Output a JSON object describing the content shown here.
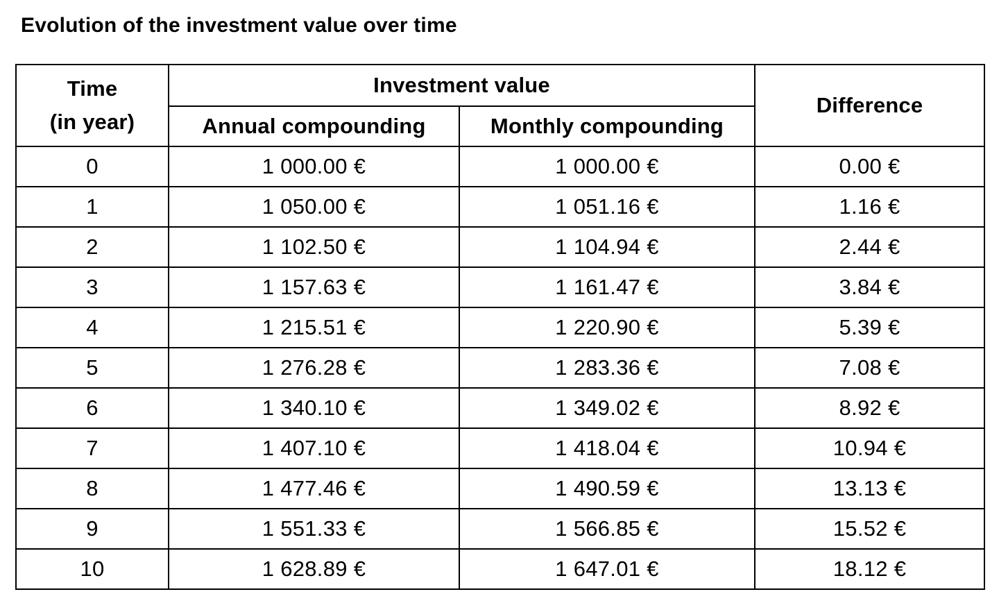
{
  "page": {
    "title": "Evolution of the investment value over time"
  },
  "table": {
    "headers": {
      "time": "Time\n(in year)",
      "investment_value": "Investment value",
      "annual": "Annual compounding",
      "monthly": "Monthly compounding",
      "difference": "Difference"
    },
    "rows": [
      {
        "time": "0",
        "annual": "1 000.00 €",
        "monthly": "1 000.00 €",
        "difference": "0.00 €"
      },
      {
        "time": "1",
        "annual": "1 050.00 €",
        "monthly": "1 051.16 €",
        "difference": "1.16 €"
      },
      {
        "time": "2",
        "annual": "1 102.50 €",
        "monthly": "1 104.94 €",
        "difference": "2.44 €"
      },
      {
        "time": "3",
        "annual": "1 157.63 €",
        "monthly": "1 161.47 €",
        "difference": "3.84 €"
      },
      {
        "time": "4",
        "annual": "1 215.51 €",
        "monthly": "1 220.90 €",
        "difference": "5.39 €"
      },
      {
        "time": "5",
        "annual": "1 276.28 €",
        "monthly": "1 283.36 €",
        "difference": "7.08 €"
      },
      {
        "time": "6",
        "annual": "1 340.10 €",
        "monthly": "1 349.02 €",
        "difference": "8.92 €"
      },
      {
        "time": "7",
        "annual": "1 407.10 €",
        "monthly": "1 418.04 €",
        "difference": "10.94 €"
      },
      {
        "time": "8",
        "annual": "1 477.46 €",
        "monthly": "1 490.59 €",
        "difference": "13.13 €"
      },
      {
        "time": "9",
        "annual": "1 551.33 €",
        "monthly": "1 566.85 €",
        "difference": "15.52 €"
      },
      {
        "time": "10",
        "annual": "1 628.89 €",
        "monthly": "1 647.01 €",
        "difference": "18.12 €"
      }
    ]
  },
  "chart_data": {
    "type": "table",
    "title": "Evolution of the investment value over time",
    "columns": [
      "Time (in year)",
      "Annual compounding",
      "Monthly compounding",
      "Difference"
    ],
    "currency": "EUR",
    "years": [
      0,
      1,
      2,
      3,
      4,
      5,
      6,
      7,
      8,
      9,
      10
    ],
    "annual_compounding": [
      1000.0,
      1050.0,
      1102.5,
      1157.63,
      1215.51,
      1276.28,
      1340.1,
      1407.1,
      1477.46,
      1551.33,
      1628.89
    ],
    "monthly_compounding": [
      1000.0,
      1051.16,
      1104.94,
      1161.47,
      1220.9,
      1283.36,
      1349.02,
      1418.04,
      1490.59,
      1566.85,
      1647.01
    ],
    "difference": [
      0.0,
      1.16,
      2.44,
      3.84,
      5.39,
      7.08,
      8.92,
      10.94,
      13.13,
      15.52,
      18.12
    ]
  },
  "colors": {
    "background": "#ffffff",
    "text": "#000000",
    "border": "#000000"
  }
}
